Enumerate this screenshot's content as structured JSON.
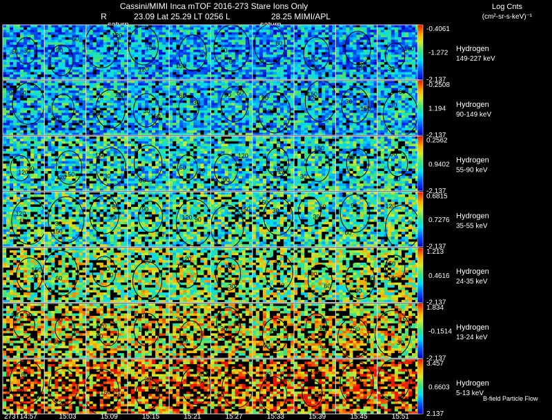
{
  "header": {
    "title": "Cassini/MIMI Inca mTOF  2016-273    Stare    Ions Only",
    "row2_r": "R",
    "row2_mid": "23.09 Lat 25.29 LT 0256 L",
    "row2_right": "28.25   MIMI/APL",
    "saturn_label_1": "saturn",
    "saturn_label_2": "saturn"
  },
  "units": {
    "line1": "Log Cnts",
    "line2": "(cm²-sr-s-keV)⁻¹"
  },
  "footer": {
    "bfield_label": "B-field Particle Flow"
  },
  "chart_data": {
    "type": "heatmap",
    "title": "Cassini/MIMI Inca mTOF  2016-273    Stare    Ions Only",
    "x_tick_labels": [
      "273T14:57",
      "15:03",
      "15:09",
      "15:15",
      "15:21",
      "15:27",
      "15:33",
      "15:39",
      "15:45",
      "15:51"
    ],
    "frame_count": 10,
    "energy_rows": [
      {
        "species": "Hydrogen",
        "energy": "149-227 keV",
        "colorbar_max": "-0.4061",
        "colorbar_mid": "-1.272",
        "colorbar_min": "-2.137",
        "level": 0.28
      },
      {
        "species": "Hydrogen",
        "energy": "90-149 keV",
        "colorbar_max": "-0.2508",
        "colorbar_mid": "1.194",
        "colorbar_min": "-2.137",
        "level": 0.33
      },
      {
        "species": "Hydrogen",
        "energy": "55-90 keV",
        "colorbar_max": "0.2562",
        "colorbar_mid": "0.9402",
        "colorbar_min": "-2.137",
        "level": 0.4
      },
      {
        "species": "Hydrogen",
        "energy": "35-55 keV",
        "colorbar_max": "0.6815",
        "colorbar_mid": "0.7276",
        "colorbar_min": "-2.137",
        "level": 0.47
      },
      {
        "species": "Hydrogen",
        "energy": "24-35 keV",
        "colorbar_max": "1.213",
        "colorbar_mid": "0.4616",
        "colorbar_min": "-2.137",
        "level": 0.56
      },
      {
        "species": "Hydrogen",
        "energy": "13-24 keV",
        "colorbar_max": "1.834",
        "colorbar_mid": "-0.1514",
        "colorbar_min": "-2.137",
        "level": 0.66
      },
      {
        "species": "Hydrogen",
        "energy": "5-13 keV",
        "colorbar_max": "3.457",
        "colorbar_mid": "0.6603",
        "colorbar_min": "2.137",
        "level": 0.78
      }
    ],
    "contour_labels": [
      "30",
      "60",
      "90",
      "120",
      "150"
    ],
    "colorscale": "rainbow (blue low to red high)",
    "grid": true
  }
}
